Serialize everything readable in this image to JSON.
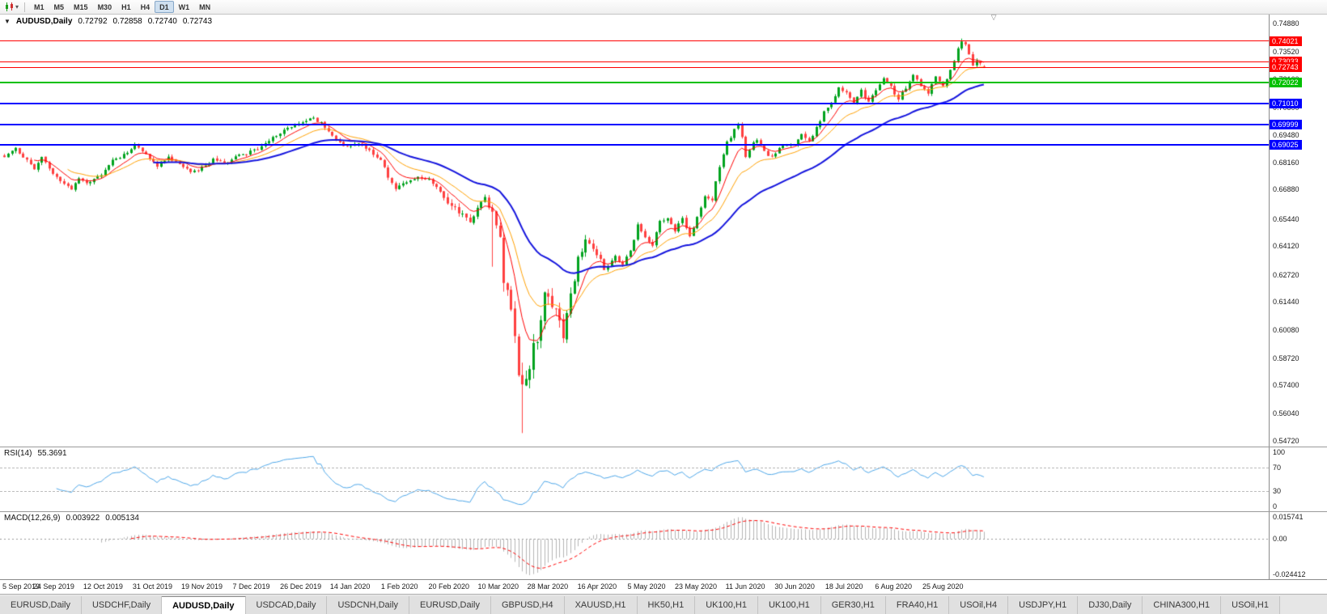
{
  "icons": {
    "collapse_arrow": "▼",
    "dropdown_caret": "▾",
    "shift_marker": "▽"
  },
  "toolbar": {
    "timeframes": [
      "M1",
      "M5",
      "M15",
      "M30",
      "H1",
      "H4",
      "D1",
      "W1",
      "MN"
    ],
    "active_timeframe": "D1"
  },
  "chart": {
    "title": "AUDUSD,Daily",
    "open": "0.72792",
    "high": "0.72858",
    "low": "0.72740",
    "close": "0.72743"
  },
  "chart_data": {
    "type": "candlestick",
    "symbol": "AUDUSD",
    "period": "Daily",
    "candle_up_color": "#00a31e",
    "candle_down_color": "#ff4040",
    "price_axis": {
      "top_price": 0.753,
      "bottom_price": 0.5445,
      "ticks": [
        "0.74880",
        "0.73520",
        "0.72160",
        "0.70800",
        "0.69480",
        "0.68160",
        "0.66880",
        "0.65440",
        "0.64120",
        "0.62720",
        "0.61440",
        "0.60080",
        "0.58720",
        "0.57400",
        "0.56040",
        "0.54720"
      ]
    },
    "levels": [
      {
        "price": 0.74021,
        "label": "0.74021",
        "color": "#ff0000",
        "thickness": 1
      },
      {
        "price": 0.73033,
        "label": "0.73033",
        "color": "#ff0000",
        "thickness": 1
      },
      {
        "price": 0.72743,
        "label": "0.72743",
        "color": "#ff0000",
        "thickness": 1
      },
      {
        "price": 0.72022,
        "label": "0.72022",
        "color": "#00c000",
        "thickness": 2
      },
      {
        "price": 0.7101,
        "label": "0.71010",
        "color": "#0000ff",
        "thickness": 2
      },
      {
        "price": 0.69999,
        "label": "0.69999",
        "color": "#0000ff",
        "thickness": 2
      },
      {
        "price": 0.69025,
        "label": "0.69025",
        "color": "#0000ff",
        "thickness": 2
      }
    ],
    "total_days": 264,
    "candles_fraction": 0.775,
    "anchors": [
      [
        0,
        0.685
      ],
      [
        3,
        0.688
      ],
      [
        6,
        0.683
      ],
      [
        8,
        0.679
      ],
      [
        10,
        0.684
      ],
      [
        13,
        0.676
      ],
      [
        16,
        0.672
      ],
      [
        18,
        0.6685
      ],
      [
        20,
        0.674
      ],
      [
        23,
        0.6715
      ],
      [
        26,
        0.676
      ],
      [
        29,
        0.683
      ],
      [
        32,
        0.685
      ],
      [
        35,
        0.6895
      ],
      [
        38,
        0.6855
      ],
      [
        41,
        0.68
      ],
      [
        44,
        0.6845
      ],
      [
        47,
        0.68
      ],
      [
        50,
        0.677
      ],
      [
        53,
        0.679
      ],
      [
        56,
        0.683
      ],
      [
        59,
        0.681
      ],
      [
        62,
        0.684
      ],
      [
        65,
        0.686
      ],
      [
        68,
        0.688
      ],
      [
        71,
        0.692
      ],
      [
        74,
        0.696
      ],
      [
        77,
        0.699
      ],
      [
        80,
        0.701
      ],
      [
        83,
        0.703
      ],
      [
        86,
        0.699
      ],
      [
        89,
        0.693
      ],
      [
        92,
        0.689
      ],
      [
        95,
        0.691
      ],
      [
        98,
        0.687
      ],
      [
        101,
        0.683
      ],
      [
        103,
        0.675
      ],
      [
        105,
        0.669
      ],
      [
        108,
        0.672
      ],
      [
        111,
        0.6745
      ],
      [
        114,
        0.673
      ],
      [
        116,
        0.67
      ],
      [
        118,
        0.664
      ],
      [
        121,
        0.66
      ],
      [
        123,
        0.656
      ],
      [
        125,
        0.652
      ],
      [
        127,
        0.66
      ],
      [
        129,
        0.664
      ],
      [
        131,
        0.658
      ],
      [
        132,
        0.65
      ],
      [
        133,
        0.648
      ],
      [
        134,
        0.622
      ],
      [
        135,
        0.619
      ],
      [
        136,
        0.612
      ],
      [
        137,
        0.599
      ],
      [
        138,
        0.579
      ],
      [
        139,
        0.5745
      ],
      [
        140,
        0.5795
      ],
      [
        141,
        0.582
      ],
      [
        142,
        0.597
      ],
      [
        143,
        0.595
      ],
      [
        144,
        0.606
      ],
      [
        145,
        0.617
      ],
      [
        146,
        0.617
      ],
      [
        147,
        0.6135
      ],
      [
        148,
        0.609
      ],
      [
        149,
        0.606
      ],
      [
        150,
        0.599
      ],
      [
        151,
        0.608
      ],
      [
        152,
        0.617
      ],
      [
        153,
        0.623
      ],
      [
        154,
        0.635
      ],
      [
        156,
        0.644
      ],
      [
        158,
        0.641
      ],
      [
        160,
        0.635
      ],
      [
        161,
        0.629
      ],
      [
        164,
        0.636
      ],
      [
        166,
        0.632
      ],
      [
        168,
        0.639
      ],
      [
        170,
        0.651
      ],
      [
        172,
        0.646
      ],
      [
        174,
        0.642
      ],
      [
        176,
        0.653
      ],
      [
        178,
        0.655
      ],
      [
        180,
        0.649
      ],
      [
        182,
        0.655
      ],
      [
        184,
        0.646
      ],
      [
        186,
        0.655
      ],
      [
        188,
        0.665
      ],
      [
        190,
        0.664
      ],
      [
        192,
        0.68
      ],
      [
        194,
        0.691
      ],
      [
        196,
        0.697
      ],
      [
        197,
        0.7
      ],
      [
        198,
        0.694
      ],
      [
        199,
        0.685
      ],
      [
        200,
        0.688
      ],
      [
        202,
        0.693
      ],
      [
        204,
        0.687
      ],
      [
        206,
        0.684
      ],
      [
        208,
        0.689
      ],
      [
        210,
        0.6905
      ],
      [
        212,
        0.6905
      ],
      [
        214,
        0.695
      ],
      [
        216,
        0.692
      ],
      [
        218,
        0.698
      ],
      [
        220,
        0.706
      ],
      [
        222,
        0.71
      ],
      [
        224,
        0.718
      ],
      [
        226,
        0.715
      ],
      [
        228,
        0.71
      ],
      [
        230,
        0.716
      ],
      [
        232,
        0.711
      ],
      [
        234,
        0.717
      ],
      [
        236,
        0.722
      ],
      [
        238,
        0.718
      ],
      [
        240,
        0.712
      ],
      [
        242,
        0.718
      ],
      [
        244,
        0.724
      ],
      [
        246,
        0.719
      ],
      [
        248,
        0.715
      ],
      [
        250,
        0.723
      ],
      [
        252,
        0.719
      ],
      [
        254,
        0.726
      ],
      [
        256,
        0.736
      ],
      [
        257,
        0.74
      ],
      [
        258,
        0.738
      ],
      [
        259,
        0.733
      ],
      [
        260,
        0.729
      ],
      [
        261,
        0.731
      ],
      [
        262,
        0.729
      ],
      [
        263,
        0.72743
      ]
    ],
    "specials": {
      "flash_wick_day": 131,
      "flash_wick_low": 0.6313,
      "crash_low_day": 139,
      "crash_low": 0.551,
      "december_peak_day": 83,
      "december_peak_high": 0.704,
      "peak_day": 257,
      "peak_high": 0.7414
    },
    "moving_averages": [
      {
        "period": 8,
        "color": "#ff0000",
        "width": 1
      },
      {
        "period": 17,
        "color": "#ffa000",
        "width": 1
      },
      {
        "period": 40,
        "color": "#1515dd",
        "width": 2
      }
    ],
    "date_labels": [
      "5 Sep 2019",
      "24 Sep 2019",
      "12 Oct 2019",
      "31 Oct 2019",
      "19 Nov 2019",
      "7 Dec 2019",
      "26 Dec 2019",
      "14 Jan 2020",
      "1 Feb 2020",
      "20 Feb 2020",
      "10 Mar 2020",
      "28 Mar 2020",
      "16 Apr 2020",
      "5 May 2020",
      "23 May 2020",
      "11 Jun 2020",
      "30 Jun 2020",
      "18 Jul 2020",
      "6 Aug 2020",
      "25 Aug 2020"
    ],
    "last_label_day": 252,
    "rsi": {
      "label": "RSI(14)",
      "value": "55.3691",
      "color": "#4da6e8",
      "axis_labels": [
        "100",
        "70",
        "30",
        "0"
      ],
      "axis_values": [
        100,
        70,
        30,
        0
      ],
      "level_lines": [
        70,
        30
      ],
      "range": [
        0,
        100
      ]
    },
    "macd": {
      "label": "MACD(12,26,9)",
      "value_main": "0.003922",
      "value_signal": "0.005134",
      "axis_labels": [
        "0.015741",
        "0.00",
        "-0.024412"
      ],
      "axis_values": [
        0.015741,
        0,
        -0.024412
      ],
      "histogram_color": "#b4b4b4",
      "signal_color": "#ff0000",
      "range": [
        -0.024412,
        0.015741
      ]
    }
  },
  "tabs": {
    "items": [
      "EURUSD,Daily",
      "USDCHF,Daily",
      "AUDUSD,Daily",
      "USDCAD,Daily",
      "USDCNH,Daily",
      "EURUSD,Daily",
      "GBPUSD,H4",
      "XAUUSD,H1",
      "HK50,H1",
      "UK100,H1",
      "UK100,H1",
      "GER30,H1",
      "FRA40,H1",
      "USOil,H4",
      "USDJPY,H1",
      "DJ30,Daily",
      "CHINA300,H1",
      "USOil,H1"
    ],
    "active_index": 2
  }
}
